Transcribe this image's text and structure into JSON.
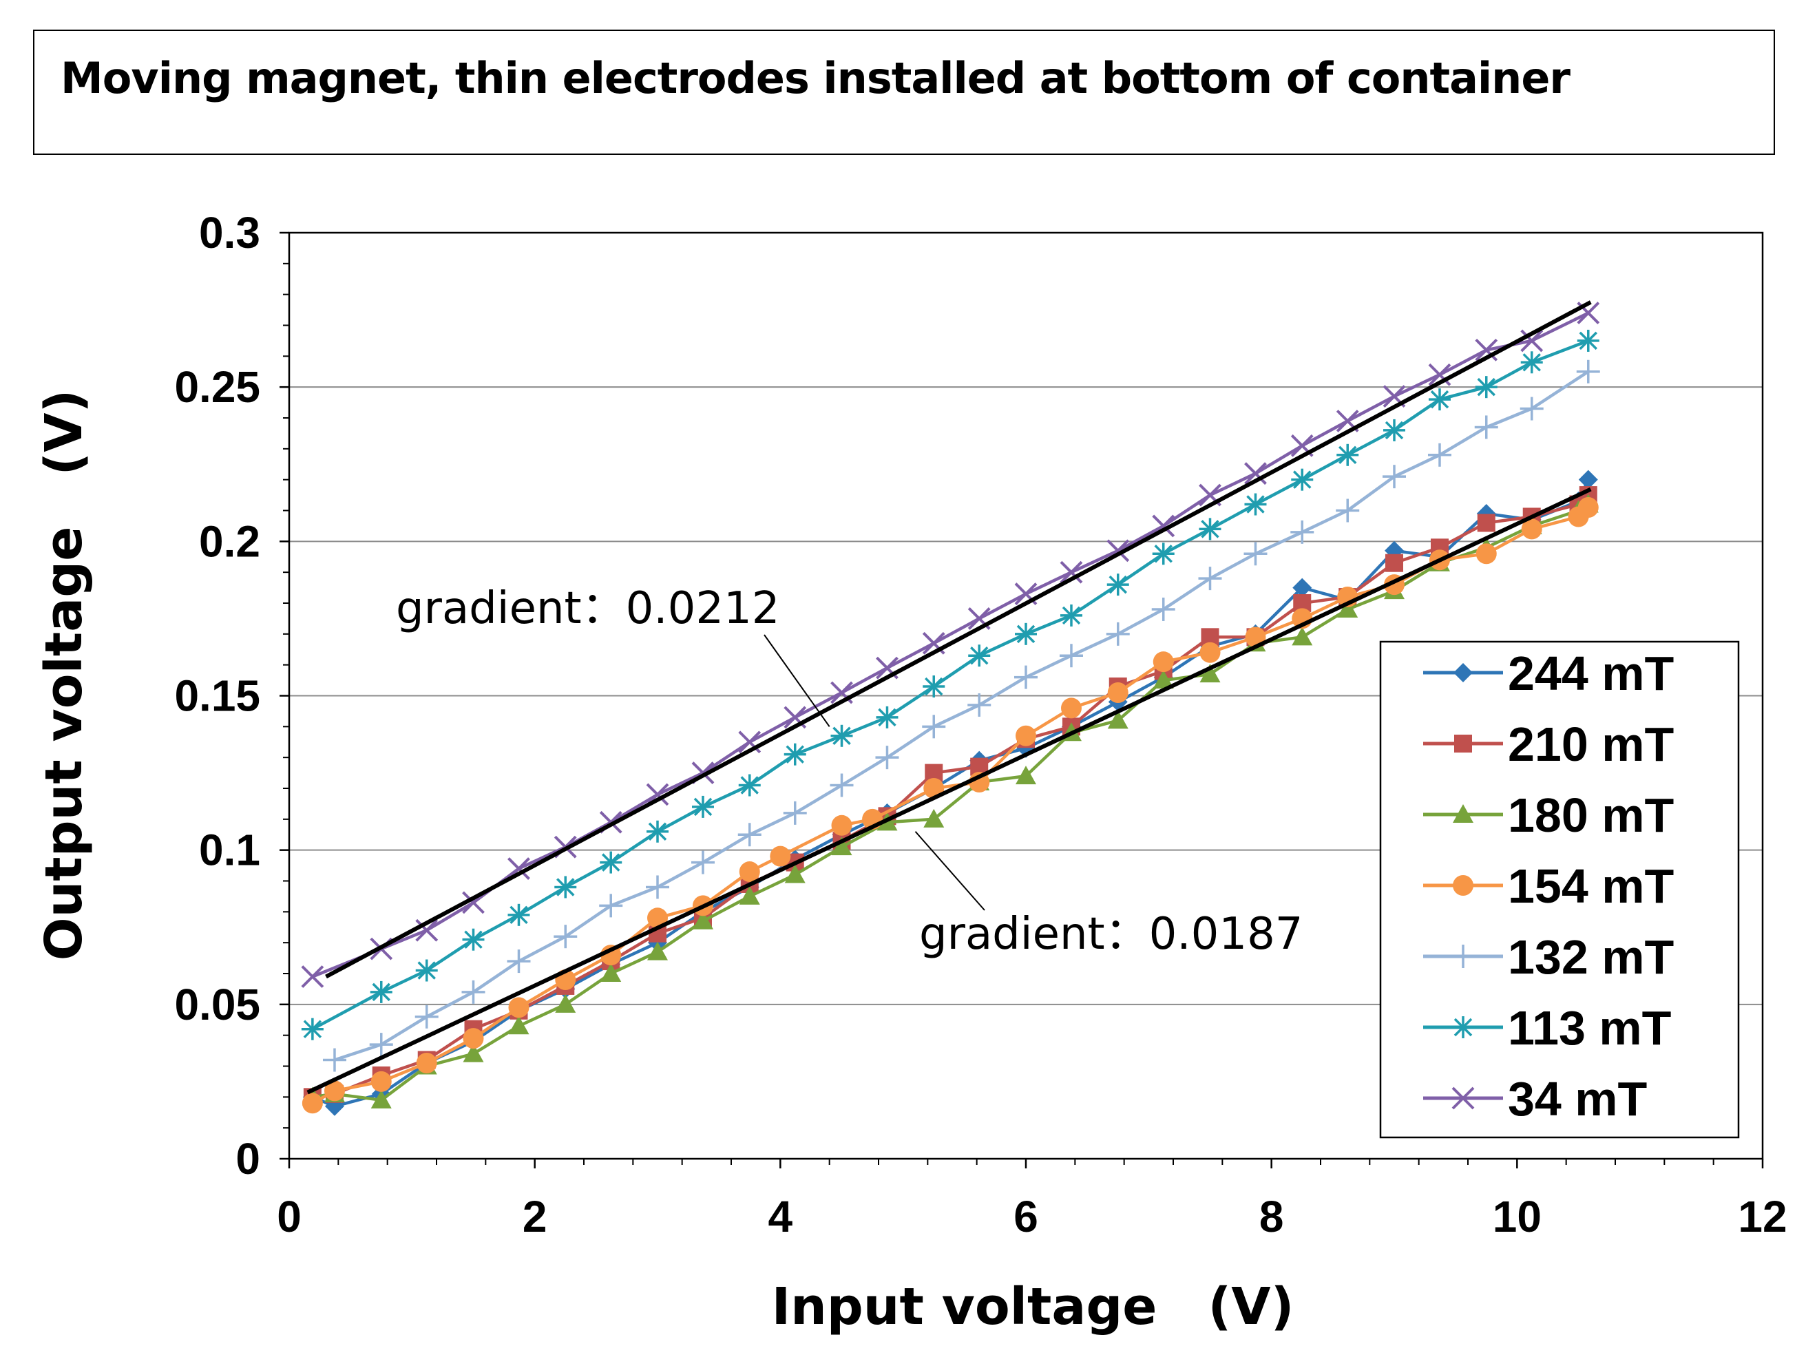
{
  "chart_data": {
    "type": "line",
    "title": "Moving magnet, thin electrodes installed at bottom of container",
    "xlabel": "Input voltage　(V)",
    "ylabel": "Output voltage　(V)",
    "xlim": [
      0,
      12
    ],
    "ylim": [
      0,
      0.3
    ],
    "x_ticks": [
      "0",
      "2",
      "4",
      "6",
      "8",
      "10",
      "12"
    ],
    "y_ticks": [
      "0",
      "0.05",
      "0.1",
      "0.15",
      "0.2",
      "0.25",
      "0.3"
    ],
    "grid": "horizontal major",
    "legend_position": "lower-right",
    "series": [
      {
        "name": "244 mT",
        "color": "#2E75B6",
        "marker": "diamond",
        "x": [
          0.19,
          0.37,
          0.75,
          1.12,
          1.5,
          1.87,
          2.25,
          2.62,
          3.0,
          3.37,
          3.75,
          4.12,
          4.5,
          4.87,
          5.25,
          5.62,
          6.0,
          6.37,
          6.75,
          7.12,
          7.5,
          7.87,
          8.25,
          8.62,
          9.0,
          9.37,
          9.75,
          10.12,
          10.5,
          10.58
        ],
        "y": [
          0.02,
          0.017,
          0.021,
          0.031,
          0.038,
          0.048,
          0.055,
          0.063,
          0.07,
          0.08,
          0.088,
          0.097,
          0.105,
          0.112,
          0.12,
          0.129,
          0.133,
          0.14,
          0.148,
          0.156,
          0.166,
          0.17,
          0.185,
          0.181,
          0.197,
          0.195,
          0.209,
          0.207,
          0.213,
          0.22
        ]
      },
      {
        "name": "210 mT",
        "color": "#C0504D",
        "marker": "square",
        "x": [
          0.19,
          0.37,
          0.75,
          1.12,
          1.5,
          1.87,
          2.25,
          2.62,
          3.0,
          3.37,
          3.75,
          4.12,
          4.5,
          4.87,
          5.25,
          5.62,
          6.0,
          6.37,
          6.75,
          7.12,
          7.5,
          7.87,
          8.25,
          8.62,
          9.0,
          9.37,
          9.75,
          10.12,
          10.5,
          10.58
        ],
        "y": [
          0.02,
          0.021,
          0.027,
          0.032,
          0.042,
          0.048,
          0.056,
          0.064,
          0.073,
          0.078,
          0.089,
          0.096,
          0.103,
          0.111,
          0.125,
          0.127,
          0.136,
          0.14,
          0.153,
          0.158,
          0.169,
          0.169,
          0.18,
          0.182,
          0.193,
          0.198,
          0.206,
          0.208,
          0.212,
          0.215
        ]
      },
      {
        "name": "180 mT",
        "color": "#77A33B",
        "marker": "triangle",
        "x": [
          0.19,
          0.37,
          0.75,
          1.12,
          1.5,
          1.87,
          2.25,
          2.62,
          3.0,
          3.37,
          3.75,
          4.12,
          4.5,
          4.87,
          5.25,
          5.62,
          6.0,
          6.37,
          6.75,
          7.12,
          7.5,
          7.87,
          8.25,
          8.62,
          9.0,
          9.37,
          9.75,
          10.12,
          10.5,
          10.58
        ],
        "y": [
          0.02,
          0.021,
          0.019,
          0.03,
          0.034,
          0.043,
          0.05,
          0.06,
          0.067,
          0.077,
          0.085,
          0.092,
          0.101,
          0.109,
          0.11,
          0.122,
          0.124,
          0.138,
          0.142,
          0.155,
          0.157,
          0.167,
          0.169,
          0.178,
          0.184,
          0.193,
          0.198,
          0.205,
          0.21,
          0.212
        ]
      },
      {
        "name": "154 mT",
        "color": "#F79646",
        "marker": "circle",
        "x": [
          0.19,
          0.37,
          0.75,
          1.12,
          1.5,
          1.87,
          2.25,
          2.62,
          3.0,
          3.37,
          3.75,
          4.0,
          4.5,
          4.75,
          5.25,
          5.62,
          6.0,
          6.37,
          6.75,
          7.12,
          7.5,
          7.87,
          8.25,
          8.62,
          9.0,
          9.37,
          9.75,
          10.12,
          10.5,
          10.58
        ],
        "y": [
          0.018,
          0.022,
          0.025,
          0.031,
          0.039,
          0.049,
          0.058,
          0.066,
          0.078,
          0.082,
          0.093,
          0.098,
          0.108,
          0.11,
          0.12,
          0.122,
          0.137,
          0.146,
          0.151,
          0.161,
          0.164,
          0.169,
          0.175,
          0.182,
          0.186,
          0.194,
          0.196,
          0.204,
          0.208,
          0.211
        ]
      },
      {
        "name": "132 mT",
        "color": "#95B3D7",
        "marker": "plus",
        "x": [
          0.37,
          0.75,
          1.12,
          1.5,
          1.87,
          2.25,
          2.62,
          3.0,
          3.37,
          3.75,
          4.12,
          4.5,
          4.87,
          5.25,
          5.62,
          6.0,
          6.37,
          6.75,
          7.12,
          7.5,
          7.87,
          8.25,
          8.62,
          9.0,
          9.37,
          9.75,
          10.12,
          10.58
        ],
        "y": [
          0.032,
          0.037,
          0.046,
          0.054,
          0.064,
          0.072,
          0.082,
          0.088,
          0.096,
          0.105,
          0.112,
          0.121,
          0.13,
          0.14,
          0.147,
          0.156,
          0.163,
          0.17,
          0.178,
          0.188,
          0.196,
          0.203,
          0.21,
          0.221,
          0.228,
          0.237,
          0.243,
          0.255
        ]
      },
      {
        "name": "113 mT",
        "color": "#1F9DAF",
        "marker": "star",
        "x": [
          0.19,
          0.75,
          1.12,
          1.5,
          1.87,
          2.25,
          2.62,
          3.0,
          3.37,
          3.75,
          4.12,
          4.5,
          4.87,
          5.25,
          5.62,
          6.0,
          6.37,
          6.75,
          7.12,
          7.5,
          7.87,
          8.25,
          8.62,
          9.0,
          9.37,
          9.75,
          10.12,
          10.58
        ],
        "y": [
          0.042,
          0.054,
          0.061,
          0.071,
          0.079,
          0.088,
          0.096,
          0.106,
          0.114,
          0.121,
          0.131,
          0.137,
          0.143,
          0.153,
          0.163,
          0.17,
          0.176,
          0.186,
          0.196,
          0.204,
          0.212,
          0.22,
          0.228,
          0.236,
          0.246,
          0.25,
          0.258,
          0.265
        ]
      },
      {
        "name": "34 mT",
        "color": "#7F5FA8",
        "marker": "x",
        "x": [
          0.19,
          0.75,
          1.12,
          1.5,
          1.87,
          2.25,
          2.62,
          3.0,
          3.37,
          3.75,
          4.12,
          4.5,
          4.87,
          5.25,
          5.62,
          6.0,
          6.37,
          6.75,
          7.12,
          7.5,
          7.87,
          8.25,
          8.62,
          9.0,
          9.37,
          9.75,
          10.12,
          10.58
        ],
        "y": [
          0.059,
          0.068,
          0.074,
          0.083,
          0.094,
          0.101,
          0.109,
          0.118,
          0.125,
          0.135,
          0.143,
          0.151,
          0.159,
          0.167,
          0.175,
          0.183,
          0.19,
          0.197,
          0.205,
          0.215,
          0.222,
          0.231,
          0.239,
          0.247,
          0.254,
          0.262,
          0.265,
          0.274
        ]
      }
    ],
    "fit_lines": [
      {
        "name": "fit-upper",
        "color": "#000000",
        "x": [
          0.3,
          10.6
        ],
        "y": [
          0.059,
          0.2775
        ]
      },
      {
        "name": "fit-lower",
        "color": "#000000",
        "x": [
          0.15,
          10.6
        ],
        "y": [
          0.0215,
          0.2169
        ]
      }
    ],
    "annotations": [
      {
        "text": "gradient：0.0212",
        "target": "fit-upper",
        "arrow_to_x": 4.4,
        "arrow_to_y": 0.14
      },
      {
        "text": "gradient：0.0187",
        "target": "fit-lower",
        "arrow_to_x": 5.1,
        "arrow_to_y": 0.106
      }
    ]
  }
}
